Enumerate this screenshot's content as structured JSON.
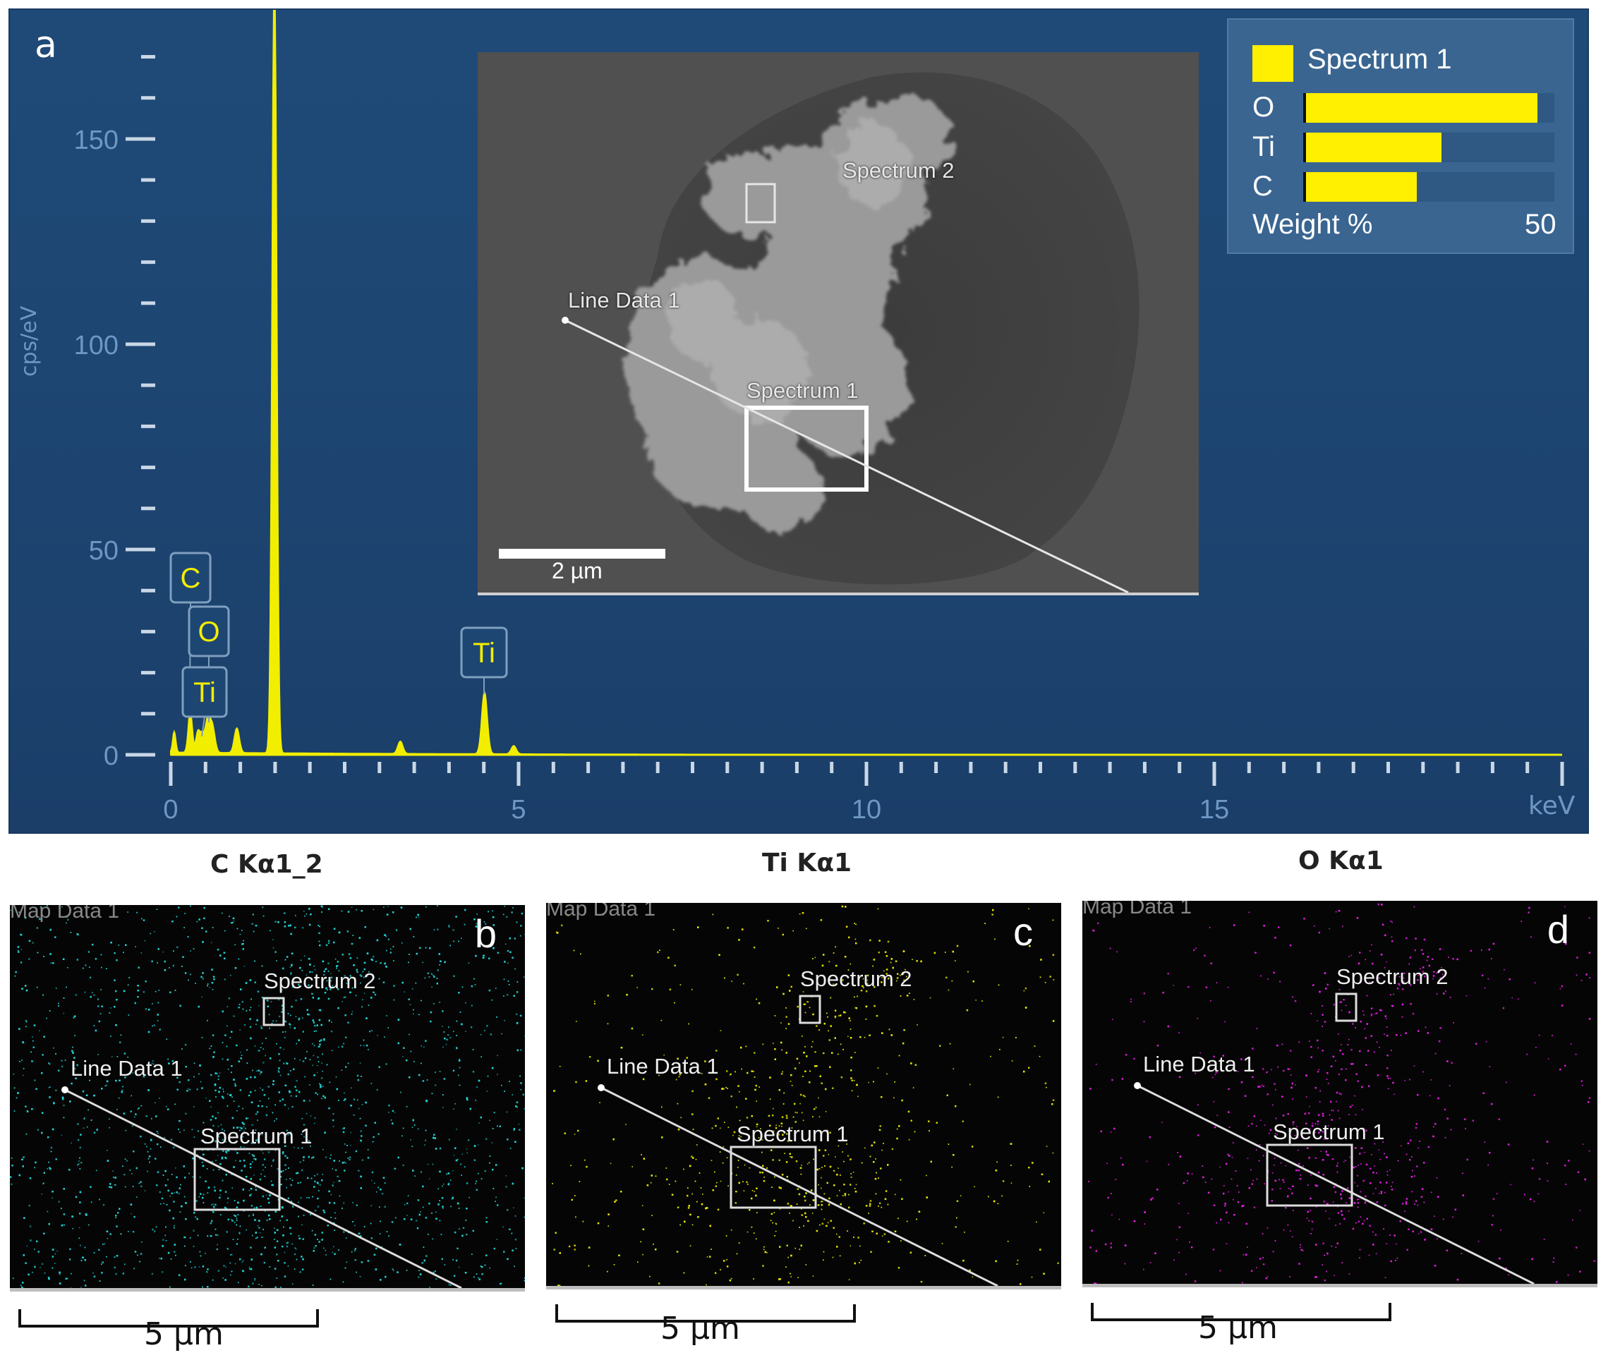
{
  "panel_a": {
    "letter": "a",
    "ylabel": "cps/eV",
    "xunit": "keV",
    "chart_data": {
      "type": "line",
      "xlim": [
        0,
        20
      ],
      "ylim": [
        0,
        175
      ],
      "xticks": [
        0,
        5,
        10,
        15
      ],
      "yticks": [
        0,
        50,
        100,
        150
      ],
      "peaks": [
        {
          "x": 0.05,
          "y": 5,
          "w": 0.03
        },
        {
          "x": 0.28,
          "y": 10,
          "w": 0.04
        },
        {
          "x": 0.39,
          "y": 5,
          "w": 0.04
        },
        {
          "x": 0.45,
          "y": 4,
          "w": 0.04
        },
        {
          "x": 0.53,
          "y": 8,
          "w": 0.05
        },
        {
          "x": 0.6,
          "y": 6,
          "w": 0.05
        },
        {
          "x": 0.95,
          "y": 6,
          "w": 0.05
        },
        {
          "x": 1.49,
          "y": 195,
          "w": 0.045
        },
        {
          "x": 3.3,
          "y": 3,
          "w": 0.05
        },
        {
          "x": 4.51,
          "y": 15,
          "w": 0.055
        },
        {
          "x": 4.93,
          "y": 2,
          "w": 0.05
        }
      ],
      "annotations": [
        {
          "label": "C",
          "x": 0.28,
          "y": 45
        },
        {
          "label": "O",
          "x": 0.53,
          "y": 32
        },
        {
          "label": "Ti",
          "x": 0.45,
          "y": 15
        },
        {
          "label": "Ti",
          "x": 4.51,
          "y": 25
        }
      ]
    },
    "sem_inset": {
      "label_spectrum2": "Spectrum 2",
      "label_linedata": "Line Data 1",
      "label_spectrum1": "Spectrum 1",
      "scale_label": "2 µm"
    },
    "legend": {
      "title": "Spectrum 1",
      "items": [
        {
          "element": "O",
          "value": 46
        },
        {
          "element": "Ti",
          "value": 27
        },
        {
          "element": "C",
          "value": 22
        }
      ],
      "footer_label": "Weight %",
      "footer_value": "50",
      "scale_max": 50
    }
  },
  "maps": [
    {
      "title": "C Kα1_2",
      "letter": "b",
      "map_label": "Map Data 1",
      "spectrum2": "Spectrum 2",
      "linedata": "Line Data 1",
      "spectrum1": "Spectrum 1",
      "scale": "5 µm",
      "color": "#21d3d6"
    },
    {
      "title": "Ti Kα1",
      "letter": "c",
      "map_label": "Map Data 1",
      "spectrum2": "Spectrum 2",
      "linedata": "Line Data 1",
      "spectrum1": "Spectrum 1",
      "scale": "5 µm",
      "color": "#e6e600"
    },
    {
      "title": "O Kα1",
      "letter": "d",
      "map_label": "Map Data 1",
      "spectrum2": "Spectrum 2",
      "linedata": "Line Data 1",
      "spectrum1": "Spectrum 1",
      "scale": "5 µm",
      "color": "#e21fe2"
    }
  ]
}
